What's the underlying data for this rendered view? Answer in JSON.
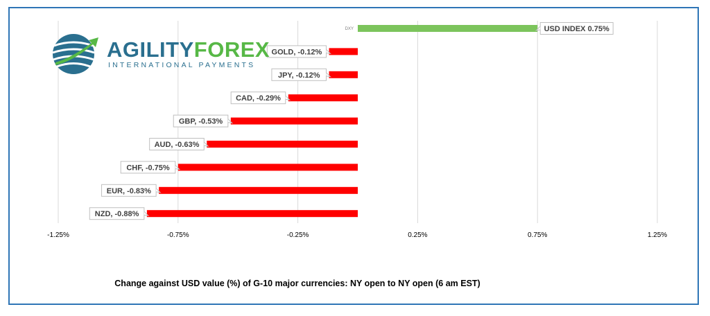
{
  "logo": {
    "name_part1": "AGILITY",
    "name_part2": "FOREX",
    "tagline": "INTERNATIONAL PAYMENTS",
    "colors": {
      "primary": "#2a6f8f",
      "accent": "#57b846"
    }
  },
  "caption": "Change against  USD value (%)  of  G-10 major currencies:  NY open to NY open  (6 am EST)",
  "chart_data": {
    "type": "bar",
    "orientation": "horizontal",
    "categories": [
      "DXY",
      "GOLD",
      "JPY",
      "CAD",
      "GBP",
      "AUD",
      "CHF",
      "EUR",
      "NZD"
    ],
    "values": [
      0.75,
      -0.12,
      -0.12,
      -0.29,
      -0.53,
      -0.63,
      -0.75,
      -0.83,
      -0.88
    ],
    "data_labels": [
      "USD INDEX 0.75%",
      "GOLD, -0.12%",
      "JPY, -0.12%",
      "CAD, -0.29%",
      "GBP, -0.53%",
      "AUD, -0.63%",
      "CHF, -0.75%",
      "EUR, -0.83%",
      "NZD, -0.88%"
    ],
    "category_axis_labels": [
      "DXY",
      "",
      "",
      "",
      "",
      "",
      "",
      "",
      ""
    ],
    "x_ticks": [
      -1.25,
      -0.75,
      -0.25,
      0.25,
      0.75,
      1.25
    ],
    "x_tick_labels": [
      "-1.25%",
      "-0.75%",
      "-0.25%",
      "0.25%",
      "0.75%",
      "1.25%"
    ],
    "xlim": [
      -1.25,
      1.25
    ],
    "grid": "vertical",
    "legend": "none",
    "colors": {
      "positive": "#7cc45c",
      "negative": "#ff0000",
      "gridline": "#d9d9d9",
      "label_border": "#bfbfbf",
      "label_text": "#404040"
    },
    "title": "",
    "xlabel": "",
    "ylabel": ""
  }
}
